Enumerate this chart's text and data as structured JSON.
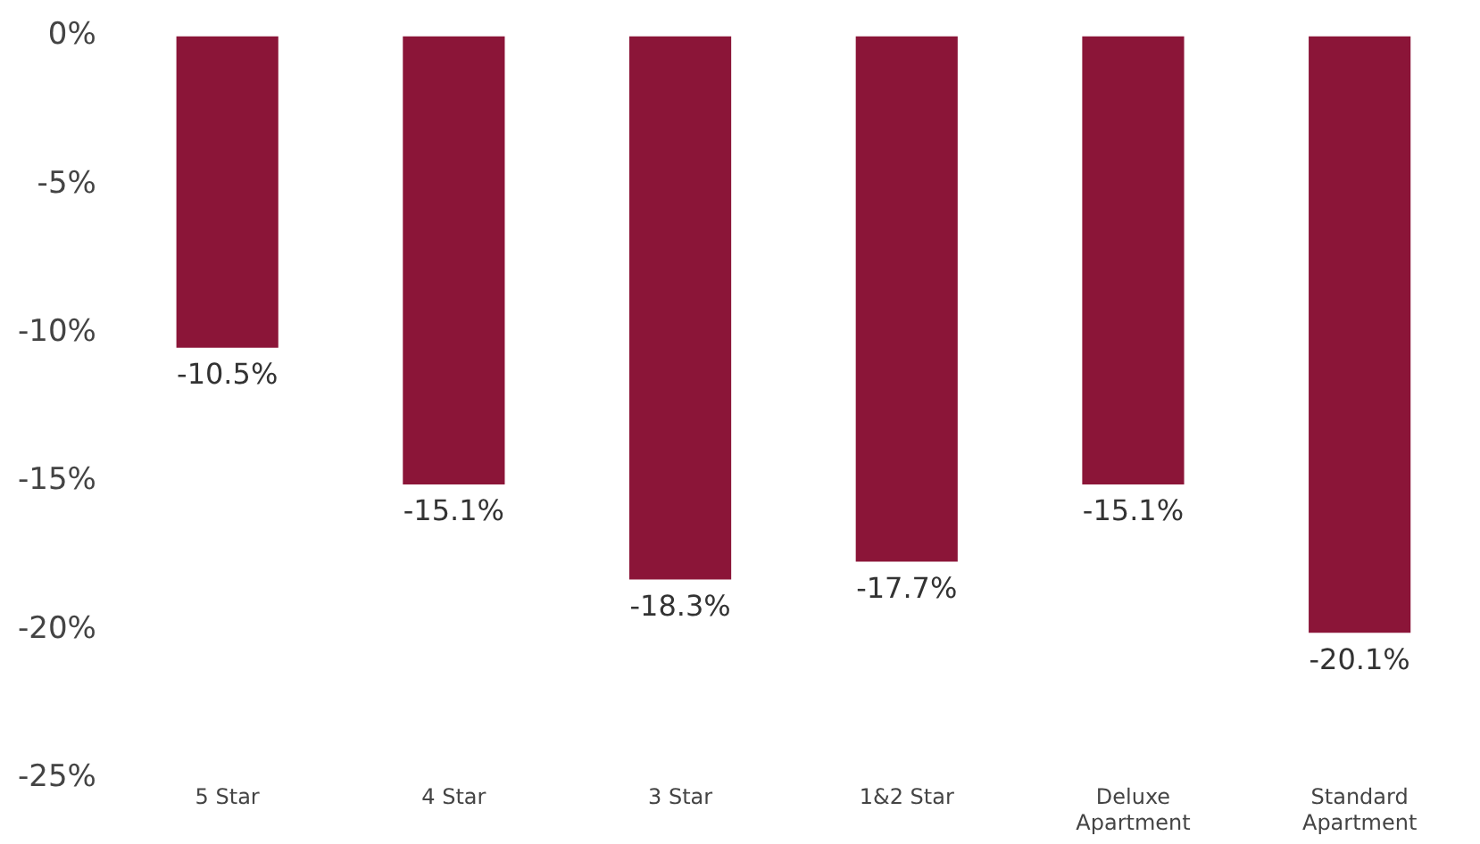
{
  "chart_data": {
    "type": "bar",
    "categories": [
      "5 Star",
      "4 Star",
      "3 Star",
      "1&2 Star",
      "Deluxe Apartment",
      "Standard Apartment"
    ],
    "values": [
      -10.5,
      -15.1,
      -18.3,
      -17.7,
      -15.1,
      -20.1
    ],
    "color": "#8b1538",
    "ylim": [
      -25,
      0
    ],
    "yticks": [
      {
        "value": 0,
        "label": "0%"
      },
      {
        "value": -5,
        "label": "-5%"
      },
      {
        "value": -10,
        "label": "-10%"
      },
      {
        "value": -15,
        "label": "-15%"
      },
      {
        "value": -20,
        "label": "-20%"
      },
      {
        "value": -25,
        "label": "-25%"
      }
    ],
    "value_labels": [
      "-10.5%",
      "-15.1%",
      "-18.3%",
      "-17.7%",
      "-15.1%",
      "-20.1%"
    ],
    "grid": false,
    "legend": false
  }
}
